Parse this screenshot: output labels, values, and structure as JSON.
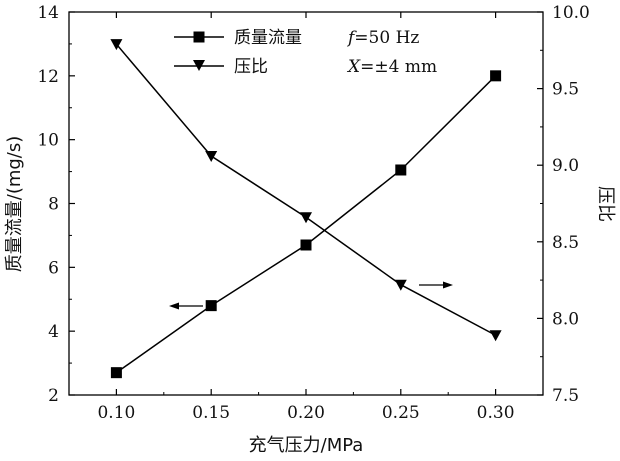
{
  "chart_data": {
    "type": "line",
    "x": [
      0.1,
      0.15,
      0.2,
      0.25,
      0.3
    ],
    "x_tick_labels": [
      "0.10",
      "0.15",
      "0.20",
      "0.25",
      "0.30"
    ],
    "xlim": [
      0.075,
      0.325
    ],
    "xlabel": "充气压力/MPa",
    "ylabel_left": "质量流量/(mg/s)",
    "ylim_left": [
      2,
      14
    ],
    "y_left_ticks": [
      "2",
      "4",
      "6",
      "8",
      "10",
      "12",
      "14"
    ],
    "ylabel_right": "压比",
    "ylim_right": [
      7.5,
      10.0
    ],
    "y_right_ticks": [
      "7.5",
      "8.0",
      "8.5",
      "9.0",
      "9.5",
      "10.0"
    ],
    "series": [
      {
        "name": "质量流量",
        "axis": "left",
        "marker": "square",
        "values": [
          2.7,
          4.8,
          6.7,
          9.05,
          12.0
        ]
      },
      {
        "name": "压比",
        "axis": "right",
        "marker": "triangle-down",
        "values": [
          9.79,
          9.06,
          8.66,
          8.22,
          7.89
        ]
      }
    ],
    "annotations": [
      {
        "text": "f=50 Hz",
        "italic_prefix": "f",
        "rest": "=50 Hz"
      },
      {
        "text": "X=±4 mm",
        "italic_prefix": "X",
        "rest": "=±4 mm"
      }
    ],
    "legend_position": "top-center",
    "grid": false,
    "line_color": "#000000"
  }
}
